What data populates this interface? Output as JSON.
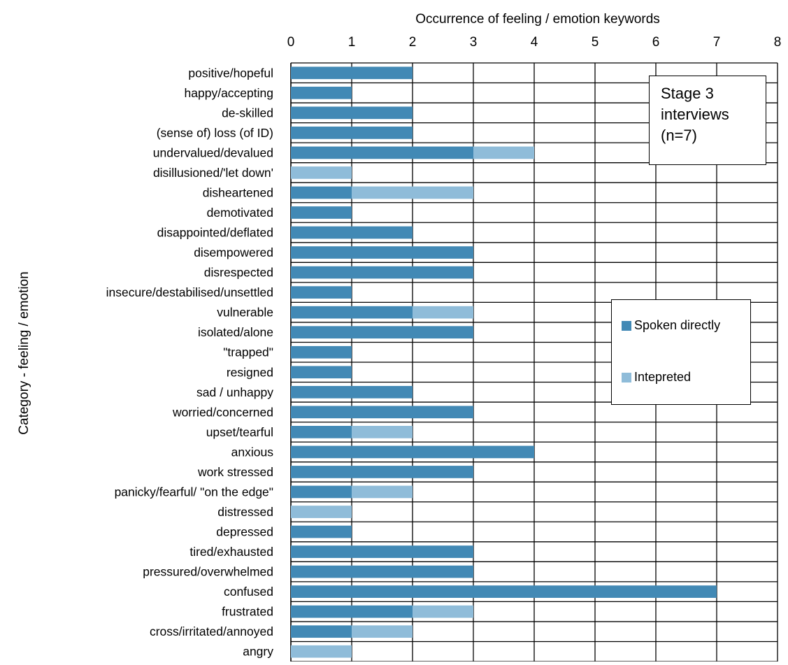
{
  "chart_data": {
    "type": "bar",
    "orientation": "horizontal",
    "stacked": true,
    "title": "Occurrence of feeling / emotion keywords",
    "xlabel": "Occurrence of feeling / emotion keywords",
    "ylabel": "Category - feeling / emotion",
    "xlim": [
      0,
      8
    ],
    "x_ticks": [
      "0",
      "1",
      "2",
      "3",
      "4",
      "5",
      "6",
      "7",
      "8"
    ],
    "x_axis_position": "top",
    "grid": true,
    "legend_position": "right",
    "categories": [
      "positive/hopeful",
      "happy/accepting",
      "de-skilled",
      "(sense of) loss (of ID)",
      "undervalued/devalued",
      "disillusioned/'let down'",
      "disheartened",
      "demotivated",
      "disappointed/deflated",
      "disempowered",
      "disrespected",
      "insecure/destabilised/unsettled",
      "vulnerable",
      "isolated/alone",
      "\"trapped\"",
      "resigned",
      "sad / unhappy",
      "worried/concerned",
      "upset/tearful",
      "anxious",
      "work stressed",
      "panicky/fearful/ \"on the edge\"",
      "distressed",
      "depressed",
      "tired/exhausted",
      "pressured/overwhelmed",
      "confused",
      "frustrated",
      "cross/irritated/annoyed",
      "angry"
    ],
    "series": [
      {
        "name": "Spoken directly",
        "color": "#4289b5",
        "values": [
          2,
          1,
          2,
          2,
          3,
          0,
          1,
          1,
          2,
          3,
          3,
          1,
          2,
          3,
          1,
          1,
          2,
          3,
          1,
          4,
          3,
          1,
          0,
          1,
          3,
          3,
          7,
          2,
          1,
          0
        ]
      },
      {
        "name": "Intepreted",
        "color": "#8fbcd9",
        "values": [
          0,
          0,
          0,
          0,
          1,
          1,
          2,
          0,
          0,
          0,
          0,
          0,
          1,
          0,
          0,
          0,
          0,
          0,
          1,
          0,
          0,
          1,
          1,
          0,
          0,
          0,
          0,
          1,
          1,
          1
        ]
      }
    ],
    "annotation": [
      "Stage 3",
      "interviews",
      "(n=7)"
    ]
  }
}
